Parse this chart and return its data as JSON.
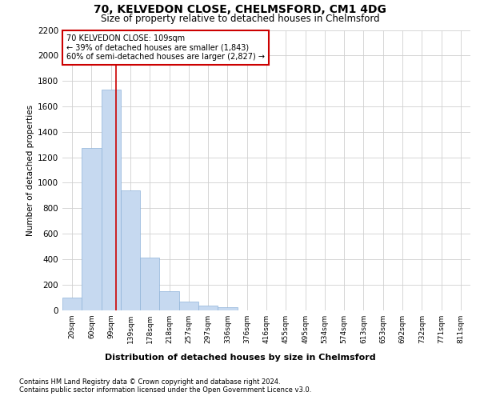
{
  "title": "70, KELVEDON CLOSE, CHELMSFORD, CM1 4DG",
  "subtitle": "Size of property relative to detached houses in Chelmsford",
  "xlabel_bottom": "Distribution of detached houses by size in Chelmsford",
  "ylabel": "Number of detached properties",
  "footer_line1": "Contains HM Land Registry data © Crown copyright and database right 2024.",
  "footer_line2": "Contains public sector information licensed under the Open Government Licence v3.0.",
  "categories": [
    "20sqm",
    "60sqm",
    "99sqm",
    "139sqm",
    "178sqm",
    "218sqm",
    "257sqm",
    "297sqm",
    "336sqm",
    "376sqm",
    "416sqm",
    "455sqm",
    "495sqm",
    "534sqm",
    "574sqm",
    "613sqm",
    "653sqm",
    "692sqm",
    "732sqm",
    "771sqm",
    "811sqm"
  ],
  "values": [
    100,
    1270,
    1730,
    940,
    410,
    150,
    65,
    35,
    20,
    0,
    0,
    0,
    0,
    0,
    0,
    0,
    0,
    0,
    0,
    0,
    0
  ],
  "bar_color": "#c6d9f0",
  "bar_edge_color": "#8fb4d9",
  "ylim": [
    0,
    2200
  ],
  "yticks": [
    0,
    200,
    400,
    600,
    800,
    1000,
    1200,
    1400,
    1600,
    1800,
    2000,
    2200
  ],
  "property_label": "70 KELVEDON CLOSE: 109sqm",
  "annotation_line1": "← 39% of detached houses are smaller (1,843)",
  "annotation_line2": "60% of semi-detached houses are larger (2,827) →",
  "vline_x_index": 2.27,
  "red_line_color": "#cc0000",
  "box_edge_color": "#cc0000",
  "background_color": "#ffffff",
  "grid_color": "#d0d0d0"
}
